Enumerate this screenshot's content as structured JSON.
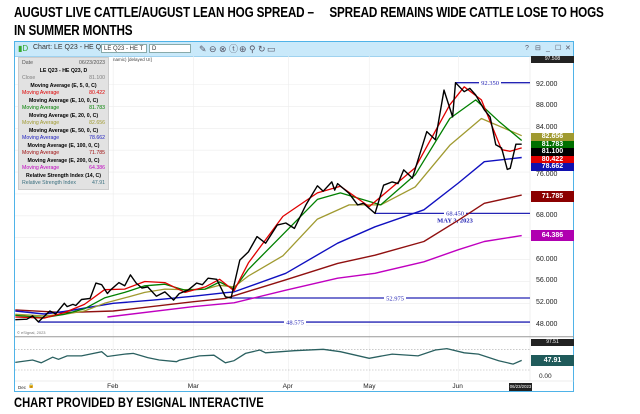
{
  "header": {
    "title_line1": "AUGUST LIVE CATTLE/AUGUST LEAN HOG SPREAD –     SPREAD REMAINS WIDE CATTLE LOSE TO HOGS",
    "title_line2": "IN SUMMER MONTHS"
  },
  "caption": "CHART PROVIDED BY ESIGNAL INTERACTIVE",
  "window": {
    "title": "Chart: LE Q23 - HE Q23, D",
    "symbol_input": "LE Q23 - HE T",
    "interval_input": "D",
    "toolbar_icons": [
      "pencil-icon",
      "minus-circle-icon",
      "x-circle-icon",
      "t-circle-icon",
      "plus-circle-icon",
      "link-icon",
      "refresh-icon",
      "chat-icon"
    ],
    "window_icons": [
      "help-icon",
      "restore-icon",
      "minimize-icon",
      "maximize-icon",
      "close-icon"
    ],
    "status_text": "namic) [delayed UI]",
    "copyright": "© eSignal, 2023"
  },
  "tooltip": {
    "date_label": "Date",
    "date_value": "06/23/2023",
    "symbol": "LE Q23 - HE Q23, D",
    "rows": [
      {
        "kind": "value",
        "label": "Close",
        "value": "81.100",
        "color": "#808080"
      },
      {
        "kind": "head",
        "label": "Moving Average (E, 5, 0, C)"
      },
      {
        "kind": "value",
        "label": "Moving Average",
        "value": "80.422",
        "color": "#e00000"
      },
      {
        "kind": "head",
        "label": "Moving Average (E, 10, 0, C)"
      },
      {
        "kind": "value",
        "label": "Moving Average",
        "value": "81.783",
        "color": "#008000"
      },
      {
        "kind": "head",
        "label": "Moving Average (E, 20, 0, C)"
      },
      {
        "kind": "value",
        "label": "Moving Average",
        "value": "82.656",
        "color": "#a09a30"
      },
      {
        "kind": "head",
        "label": "Moving Average (E, 50, 0, C)"
      },
      {
        "kind": "value",
        "label": "Moving Average",
        "value": "78.662",
        "color": "#2020c0"
      },
      {
        "kind": "head",
        "label": "Moving Average (E, 100, 0, C)"
      },
      {
        "kind": "value",
        "label": "Moving Average",
        "value": "71.785",
        "color": "#a01010"
      },
      {
        "kind": "head",
        "label": "Moving Average (E, 200, 0, C)"
      },
      {
        "kind": "value",
        "label": "Moving Average",
        "value": "64.386",
        "color": "#c000c0"
      },
      {
        "kind": "head",
        "label": "Relative Strength Index (14, C)"
      },
      {
        "kind": "value",
        "label": "Relative Strength Index",
        "value": "47.91",
        "color": "#3a6f7f"
      }
    ]
  },
  "chart_data": {
    "type": "line",
    "xlabel": "",
    "ylabel": "",
    "x_ticks": [
      "Dec",
      "Feb",
      "Mar",
      "Apr",
      "May",
      "Jun"
    ],
    "x_tick_dates": [
      "2022-12-29",
      "2023-02-01",
      "2023-03-01",
      "2023-04-03",
      "2023-05-01",
      "2023-06-01"
    ],
    "last_date_label": "06/23/2023",
    "price_axis": {
      "ticks": [
        "92.000",
        "88.000",
        "84.000",
        "76.000",
        "68.000",
        "60.000",
        "56.000",
        "52.000",
        "48.000"
      ],
      "tick_values": [
        92,
        88,
        84,
        80,
        76,
        72,
        68,
        64,
        60,
        56,
        52,
        48
      ],
      "top_tag": "97.508",
      "ylim": [
        47,
        97.5
      ]
    },
    "price_series": [
      {
        "key": "close",
        "color": "#000000",
        "width": 1.4,
        "points": [
          [
            "2022-12-29",
            49.0
          ],
          [
            "2023-01-02",
            49.1
          ],
          [
            "2023-01-04",
            49.7
          ],
          [
            "2023-01-06",
            48.6
          ],
          [
            "2023-01-10",
            50.6
          ],
          [
            "2023-01-12",
            50.05
          ],
          [
            "2023-01-15",
            52.0
          ],
          [
            "2023-01-16",
            51.4
          ],
          [
            "2023-01-18",
            51.8
          ],
          [
            "2023-01-19",
            51.6
          ],
          [
            "2023-01-21",
            52.7
          ],
          [
            "2023-01-24",
            52.9
          ],
          [
            "2023-01-26",
            55.7
          ],
          [
            "2023-01-28",
            55.4
          ],
          [
            "2023-01-30",
            53.8
          ],
          [
            "2023-01-31",
            54.4
          ],
          [
            "2023-02-03",
            55.8
          ],
          [
            "2023-02-05",
            55.2
          ],
          [
            "2023-02-07",
            57.2
          ],
          [
            "2023-02-09",
            55.7
          ],
          [
            "2023-02-11",
            54.8
          ],
          [
            "2023-02-13",
            55.0
          ],
          [
            "2023-02-16",
            53.3
          ],
          [
            "2023-02-19",
            54.1
          ],
          [
            "2023-02-22",
            52.6
          ],
          [
            "2023-02-24",
            53.8
          ],
          [
            "2023-02-27",
            54.4
          ],
          [
            "2023-03-02",
            55.7
          ],
          [
            "2023-03-04",
            55.4
          ],
          [
            "2023-03-06",
            56.6
          ],
          [
            "2023-03-09",
            56.4
          ],
          [
            "2023-03-12",
            53.2
          ],
          [
            "2023-03-14",
            53.0
          ],
          [
            "2023-03-17",
            59.9
          ],
          [
            "2023-03-20",
            61.4
          ],
          [
            "2023-03-23",
            64.2
          ],
          [
            "2023-03-26",
            63.0
          ],
          [
            "2023-03-30",
            66.3
          ],
          [
            "2023-04-02",
            66.7
          ],
          [
            "2023-04-05",
            65.7
          ],
          [
            "2023-04-09",
            70.0
          ],
          [
            "2023-04-13",
            73.5
          ],
          [
            "2023-04-15",
            72.5
          ],
          [
            "2023-04-18",
            74.2
          ],
          [
            "2023-04-19",
            72.7
          ],
          [
            "2023-04-20",
            73.9
          ],
          [
            "2023-04-24",
            72.1
          ],
          [
            "2023-04-27",
            70.0
          ],
          [
            "2023-04-29",
            70.3
          ],
          [
            "2023-05-03",
            68.45
          ],
          [
            "2023-05-06",
            73.6
          ],
          [
            "2023-05-09",
            74.2
          ],
          [
            "2023-05-11",
            73.9
          ],
          [
            "2023-05-13",
            76.4
          ],
          [
            "2023-05-16",
            74.9
          ],
          [
            "2023-05-19",
            80.0
          ],
          [
            "2023-05-21",
            83.4
          ],
          [
            "2023-05-24",
            81.9
          ],
          [
            "2023-05-27",
            91.0
          ],
          [
            "2023-05-30",
            86.1
          ],
          [
            "2023-05-31",
            92.35
          ],
          [
            "2023-06-03",
            90.7
          ],
          [
            "2023-06-05",
            91.3
          ],
          [
            "2023-06-07",
            90.1
          ],
          [
            "2023-06-10",
            87.4
          ],
          [
            "2023-06-12",
            86.1
          ],
          [
            "2023-06-14",
            81.0
          ],
          [
            "2023-06-16",
            80.4
          ],
          [
            "2023-06-18",
            76.5
          ],
          [
            "2023-06-19",
            76.7
          ],
          [
            "2023-06-21",
            81.1
          ],
          [
            "2023-06-23",
            81.1
          ]
        ]
      },
      {
        "key": "ma5",
        "color": "#e00000",
        "width": 1.3,
        "points": [
          [
            "2022-12-29",
            49.5
          ],
          [
            "2023-01-08",
            49.3
          ],
          [
            "2023-01-15",
            50.3
          ],
          [
            "2023-01-22",
            51.8
          ],
          [
            "2023-01-29",
            54.5
          ],
          [
            "2023-02-05",
            54.6
          ],
          [
            "2023-02-12",
            56.0
          ],
          [
            "2023-02-19",
            55.8
          ],
          [
            "2023-02-26",
            54.0
          ],
          [
            "2023-03-05",
            55.0
          ],
          [
            "2023-03-10",
            56.4
          ],
          [
            "2023-03-15",
            54.3
          ],
          [
            "2023-03-20",
            59.4
          ],
          [
            "2023-04-01",
            67.9
          ],
          [
            "2023-04-13",
            72.2
          ],
          [
            "2023-04-21",
            73.4
          ],
          [
            "2023-05-01",
            69.7
          ],
          [
            "2023-05-17",
            76.8
          ],
          [
            "2023-05-29",
            88.3
          ],
          [
            "2023-06-03",
            91.6
          ],
          [
            "2023-06-09",
            89.2
          ],
          [
            "2023-06-16",
            80.1
          ],
          [
            "2023-06-19",
            79.8
          ],
          [
            "2023-06-23",
            80.422
          ]
        ]
      },
      {
        "key": "ma10",
        "color": "#008000",
        "width": 1.3,
        "points": [
          [
            "2022-12-29",
            49.8
          ],
          [
            "2023-01-08",
            49.4
          ],
          [
            "2023-01-15",
            50.0
          ],
          [
            "2023-01-22",
            51.0
          ],
          [
            "2023-01-29",
            53.0
          ],
          [
            "2023-02-05",
            54.0
          ],
          [
            "2023-02-12",
            55.2
          ],
          [
            "2023-02-19",
            55.5
          ],
          [
            "2023-02-26",
            54.4
          ],
          [
            "2023-03-05",
            54.6
          ],
          [
            "2023-03-10",
            55.9
          ],
          [
            "2023-03-15",
            54.6
          ],
          [
            "2023-03-20",
            58.2
          ],
          [
            "2023-04-01",
            64.6
          ],
          [
            "2023-04-13",
            71.0
          ],
          [
            "2023-04-21",
            72.2
          ],
          [
            "2023-05-05",
            70.0
          ],
          [
            "2023-05-17",
            75.5
          ],
          [
            "2023-05-29",
            85.8
          ],
          [
            "2023-06-07",
            89.2
          ],
          [
            "2023-06-15",
            85.3
          ],
          [
            "2023-06-23",
            81.783
          ]
        ]
      },
      {
        "key": "ma20",
        "color": "#a09a30",
        "width": 1.3,
        "points": [
          [
            "2022-12-29",
            50.0
          ],
          [
            "2023-01-08",
            49.7
          ],
          [
            "2023-01-15",
            50.0
          ],
          [
            "2023-01-22",
            50.6
          ],
          [
            "2023-01-29",
            52.0
          ],
          [
            "2023-02-05",
            53.0
          ],
          [
            "2023-02-12",
            54.0
          ],
          [
            "2023-02-19",
            54.6
          ],
          [
            "2023-02-26",
            54.5
          ],
          [
            "2023-03-05",
            54.6
          ],
          [
            "2023-03-10",
            55.3
          ],
          [
            "2023-03-15",
            55.0
          ],
          [
            "2023-03-20",
            57.0
          ],
          [
            "2023-04-01",
            60.7
          ],
          [
            "2023-04-13",
            67.4
          ],
          [
            "2023-04-24",
            70.0
          ],
          [
            "2023-05-05",
            70.0
          ],
          [
            "2023-05-17",
            73.3
          ],
          [
            "2023-05-29",
            80.9
          ],
          [
            "2023-06-09",
            85.8
          ],
          [
            "2023-06-23",
            82.656
          ]
        ]
      },
      {
        "key": "ma50",
        "color": "#1010c0",
        "width": 1.4,
        "points": [
          [
            "2022-12-29",
            50.6
          ],
          [
            "2023-01-08",
            50.05
          ],
          [
            "2023-01-15",
            50.5
          ],
          [
            "2023-02-01",
            52.0
          ],
          [
            "2023-02-15",
            52.6
          ],
          [
            "2023-03-01",
            53.3
          ],
          [
            "2023-03-12",
            53.95
          ],
          [
            "2023-03-15",
            54.1
          ],
          [
            "2023-04-02",
            57.5
          ],
          [
            "2023-04-20",
            63.0
          ],
          [
            "2023-05-03",
            66.0
          ],
          [
            "2023-05-20",
            69.1
          ],
          [
            "2023-06-01",
            74.0
          ],
          [
            "2023-06-10",
            77.9
          ],
          [
            "2023-06-23",
            78.662
          ]
        ]
      },
      {
        "key": "ma100",
        "color": "#901010",
        "width": 1.4,
        "points": [
          [
            "2022-12-29",
            50.8
          ],
          [
            "2023-01-15",
            50.3
          ],
          [
            "2023-02-01",
            50.6
          ],
          [
            "2023-03-01",
            52.3
          ],
          [
            "2023-03-12",
            52.9
          ],
          [
            "2023-04-02",
            56.3
          ],
          [
            "2023-04-20",
            59.3
          ],
          [
            "2023-05-03",
            60.8
          ],
          [
            "2023-05-20",
            63.3
          ],
          [
            "2023-06-01",
            67.2
          ],
          [
            "2023-06-10",
            70.3
          ],
          [
            "2023-06-23",
            71.785
          ]
        ]
      },
      {
        "key": "ma200",
        "color": "#c000c0",
        "width": 1.4,
        "points": [
          [
            "2023-01-30",
            49.5
          ],
          [
            "2023-03-01",
            51.4
          ],
          [
            "2023-03-15",
            52.1
          ],
          [
            "2023-04-02",
            54.4
          ],
          [
            "2023-04-20",
            56.6
          ],
          [
            "2023-05-03",
            57.5
          ],
          [
            "2023-05-20",
            59.6
          ],
          [
            "2023-06-01",
            61.8
          ],
          [
            "2023-06-10",
            63.3
          ],
          [
            "2023-06-23",
            64.386
          ]
        ]
      }
    ],
    "levels": [
      {
        "value": 92.35,
        "label": "92.350",
        "start": "2023-05-31"
      },
      {
        "value": 68.45,
        "label": "68.450",
        "sublabel": "MAY 3, 2023",
        "start": "2023-05-03"
      },
      {
        "value": 52.975,
        "label": "52.975",
        "start": "2023-03-14"
      },
      {
        "value": 48.575,
        "label": "48.575",
        "start": "2023-01-06"
      }
    ],
    "level_color": "#2424b4",
    "value_tags": [
      {
        "label": "82.656",
        "value": 82.656,
        "color": "#a09a30"
      },
      {
        "label": "81.783",
        "value": 81.783,
        "color": "#007000"
      },
      {
        "label": "80.422",
        "value": 80.422,
        "color": "#e00000"
      },
      {
        "label": "81.100",
        "value": 81.1,
        "color": "#000000"
      },
      {
        "label": "78.662",
        "value": 78.662,
        "color": "#1010b0"
      },
      {
        "label": "71.785",
        "value": 71.785,
        "color": "#8b0000"
      },
      {
        "label": "64.386",
        "value": 64.386,
        "color": "#b000b0"
      }
    ],
    "rsi": {
      "top_tag": "97.51",
      "current_tag": "47.91",
      "bottom_label": "0.00",
      "bands": [
        80,
        20
      ],
      "color": "#2a6060",
      "points": [
        [
          "2022-12-29",
          42
        ],
        [
          "2023-01-04",
          49
        ],
        [
          "2023-01-07",
          41
        ],
        [
          "2023-01-11",
          57
        ],
        [
          "2023-01-13",
          51
        ],
        [
          "2023-01-16",
          61
        ],
        [
          "2023-01-21",
          61
        ],
        [
          "2023-01-28",
          73
        ],
        [
          "2023-01-30",
          59
        ],
        [
          "2023-02-05",
          66
        ],
        [
          "2023-02-08",
          68
        ],
        [
          "2023-02-13",
          56
        ],
        [
          "2023-02-17",
          49
        ],
        [
          "2023-02-23",
          44
        ],
        [
          "2023-02-24",
          48
        ],
        [
          "2023-03-03",
          61
        ],
        [
          "2023-03-08",
          63
        ],
        [
          "2023-03-12",
          41
        ],
        [
          "2023-03-15",
          47
        ],
        [
          "2023-03-19",
          68
        ],
        [
          "2023-03-24",
          78
        ],
        [
          "2023-03-26",
          70
        ],
        [
          "2023-04-05",
          76
        ],
        [
          "2023-04-15",
          80
        ],
        [
          "2023-04-21",
          73
        ],
        [
          "2023-05-01",
          54
        ],
        [
          "2023-05-09",
          66
        ],
        [
          "2023-05-18",
          61
        ],
        [
          "2023-05-24",
          78
        ],
        [
          "2023-05-28",
          82
        ],
        [
          "2023-06-03",
          70
        ],
        [
          "2023-06-08",
          66
        ],
        [
          "2023-06-15",
          47
        ],
        [
          "2023-06-20",
          37
        ],
        [
          "2023-06-23",
          47.91
        ]
      ]
    }
  }
}
